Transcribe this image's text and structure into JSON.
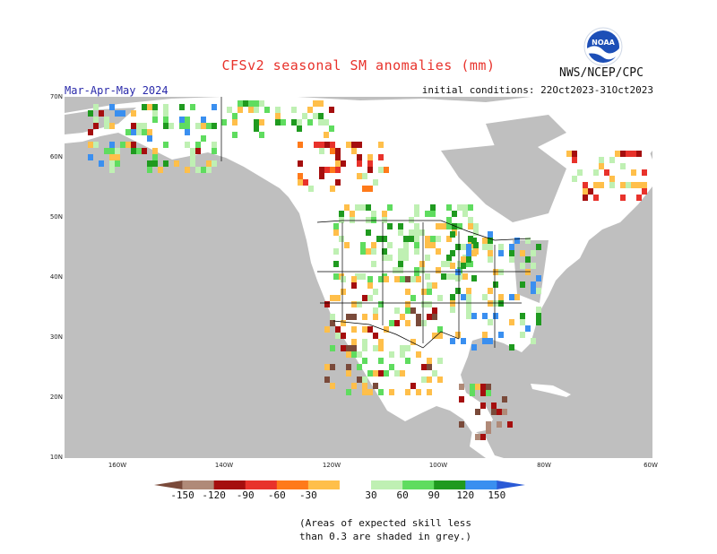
{
  "title": "CFSv2 seasonal SM anomalies (mm)",
  "agency": "NWS/NCEP/CPC",
  "logo_text": "NOAA",
  "season": "Mar-Apr-May 2024",
  "initial_conditions": "initial conditions: 22Oct2023-31Oct2023",
  "lat_labels": [
    "70N",
    "60N",
    "50N",
    "40N",
    "30N",
    "20N",
    "10N"
  ],
  "lon_labels": [
    "160W",
    "140W",
    "120W",
    "100W",
    "80W",
    "60W"
  ],
  "legend": {
    "colors": [
      "#7a4a3a",
      "#b08a78",
      "#a50e0e",
      "#e8322b",
      "#ff7a1a",
      "#ffbf4a",
      "#ffffff",
      "#bff0b3",
      "#5fdc5f",
      "#1f9a1f",
      "#3a8ff0",
      "#2a5ad6"
    ],
    "labels": [
      "-150",
      "-120",
      "-90",
      "-60",
      "-30",
      "30",
      "60",
      "90",
      "120",
      "150"
    ]
  },
  "note_line1": "(Areas of expected skill less",
  "note_line2": "than 0.3 are shaded in grey.)",
  "colors": {
    "ocean": "#bfbfbf",
    "land": "#ffffff",
    "title": "#e8322b",
    "season": "#2a2aaa"
  }
}
